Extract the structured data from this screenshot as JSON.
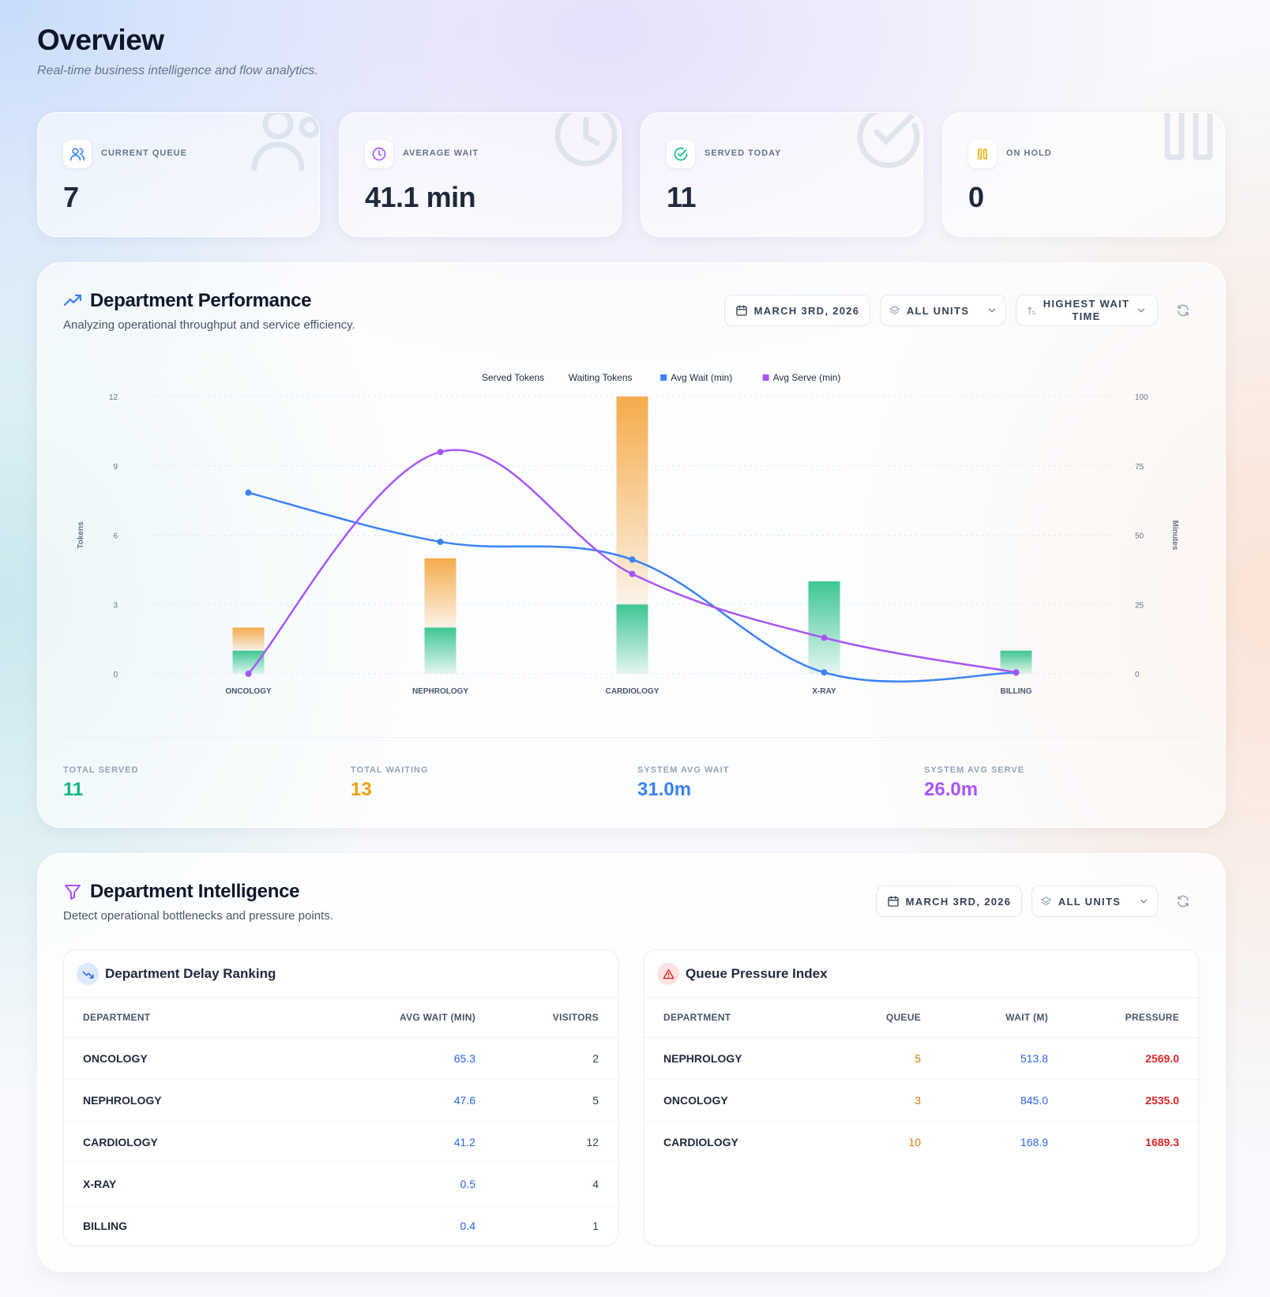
{
  "header": {
    "title": "Overview",
    "subtitle": "Real-time business intelligence and flow analytics."
  },
  "stats": [
    {
      "label": "CURRENT QUEUE",
      "value": "7",
      "icon": "users-icon",
      "color": "#3b82f6"
    },
    {
      "label": "AVERAGE WAIT",
      "value": "41.1 min",
      "icon": "clock-icon",
      "color": "#a855f7"
    },
    {
      "label": "SERVED TODAY",
      "value": "11",
      "icon": "check-circle-icon",
      "color": "#10b981"
    },
    {
      "label": "ON HOLD",
      "value": "0",
      "icon": "pause-icon",
      "color": "#eab308"
    }
  ],
  "performance": {
    "title": "Department Performance",
    "description": "Analyzing operational throughput and service efficiency.",
    "controls": {
      "date": "MARCH 3RD, 2026",
      "units": "ALL UNITS",
      "sort_line1": "HIGHEST WAIT",
      "sort_line2": "TIME"
    },
    "summary": [
      {
        "label": "TOTAL SERVED",
        "value": "11",
        "color": "#10b981"
      },
      {
        "label": "TOTAL WAITING",
        "value": "13",
        "color": "#f59e0b"
      },
      {
        "label": "SYSTEM AVG WAIT",
        "value": "31.0m",
        "color": "#3b82f6"
      },
      {
        "label": "SYSTEM AVG SERVE",
        "value": "26.0m",
        "color": "#a855f7"
      }
    ]
  },
  "chart_data": {
    "type": "bar",
    "categories": [
      "ONCOLOGY",
      "NEPHROLOGY",
      "CARDIOLOGY",
      "X-RAY",
      "BILLING"
    ],
    "series": [
      {
        "name": "Served Tokens",
        "kind": "bar",
        "axis": "left",
        "color": "#34c38f",
        "values": [
          1,
          2,
          3,
          4,
          1
        ]
      },
      {
        "name": "Waiting Tokens",
        "kind": "bar",
        "axis": "left",
        "color": "#f5a742",
        "values": [
          1,
          3,
          9,
          0,
          0
        ]
      },
      {
        "name": "Avg Wait (min)",
        "kind": "line",
        "axis": "right",
        "color": "#3b82f6",
        "values": [
          65.3,
          47.6,
          41.2,
          0.5,
          0.4
        ]
      },
      {
        "name": "Avg Serve (min)",
        "kind": "line",
        "axis": "right",
        "color": "#a855f7",
        "values": [
          0,
          80,
          36,
          13,
          0.5
        ]
      }
    ],
    "ylabel": "Tokens",
    "y2label": "Minutes",
    "ylim": [
      0,
      12
    ],
    "y2lim": [
      0,
      100
    ],
    "yticks": [
      "0",
      "3",
      "6",
      "9",
      "12"
    ],
    "y2ticks": [
      "0",
      "25",
      "50",
      "75",
      "100"
    ],
    "legend_position": "top-center",
    "grid": true
  },
  "intelligence": {
    "title": "Department Intelligence",
    "description": "Detect operational bottlenecks and pressure points.",
    "controls": {
      "date": "MARCH 3RD, 2026",
      "units": "ALL UNITS"
    },
    "delay_ranking": {
      "title": "Department Delay Ranking",
      "columns": [
        "DEPARTMENT",
        "AVG WAIT (MIN)",
        "VISITORS"
      ],
      "rows": [
        [
          "ONCOLOGY",
          "65.3",
          "2"
        ],
        [
          "NEPHROLOGY",
          "47.6",
          "5"
        ],
        [
          "CARDIOLOGY",
          "41.2",
          "12"
        ],
        [
          "X-RAY",
          "0.5",
          "4"
        ],
        [
          "BILLING",
          "0.4",
          "1"
        ]
      ]
    },
    "pressure_index": {
      "title": "Queue Pressure Index",
      "columns": [
        "DEPARTMENT",
        "QUEUE",
        "WAIT (M)",
        "PRESSURE"
      ],
      "rows": [
        [
          "NEPHROLOGY",
          "5",
          "513.8",
          "2569.0"
        ],
        [
          "ONCOLOGY",
          "3",
          "845.0",
          "2535.0"
        ],
        [
          "CARDIOLOGY",
          "10",
          "168.9",
          "1689.3"
        ]
      ]
    }
  }
}
